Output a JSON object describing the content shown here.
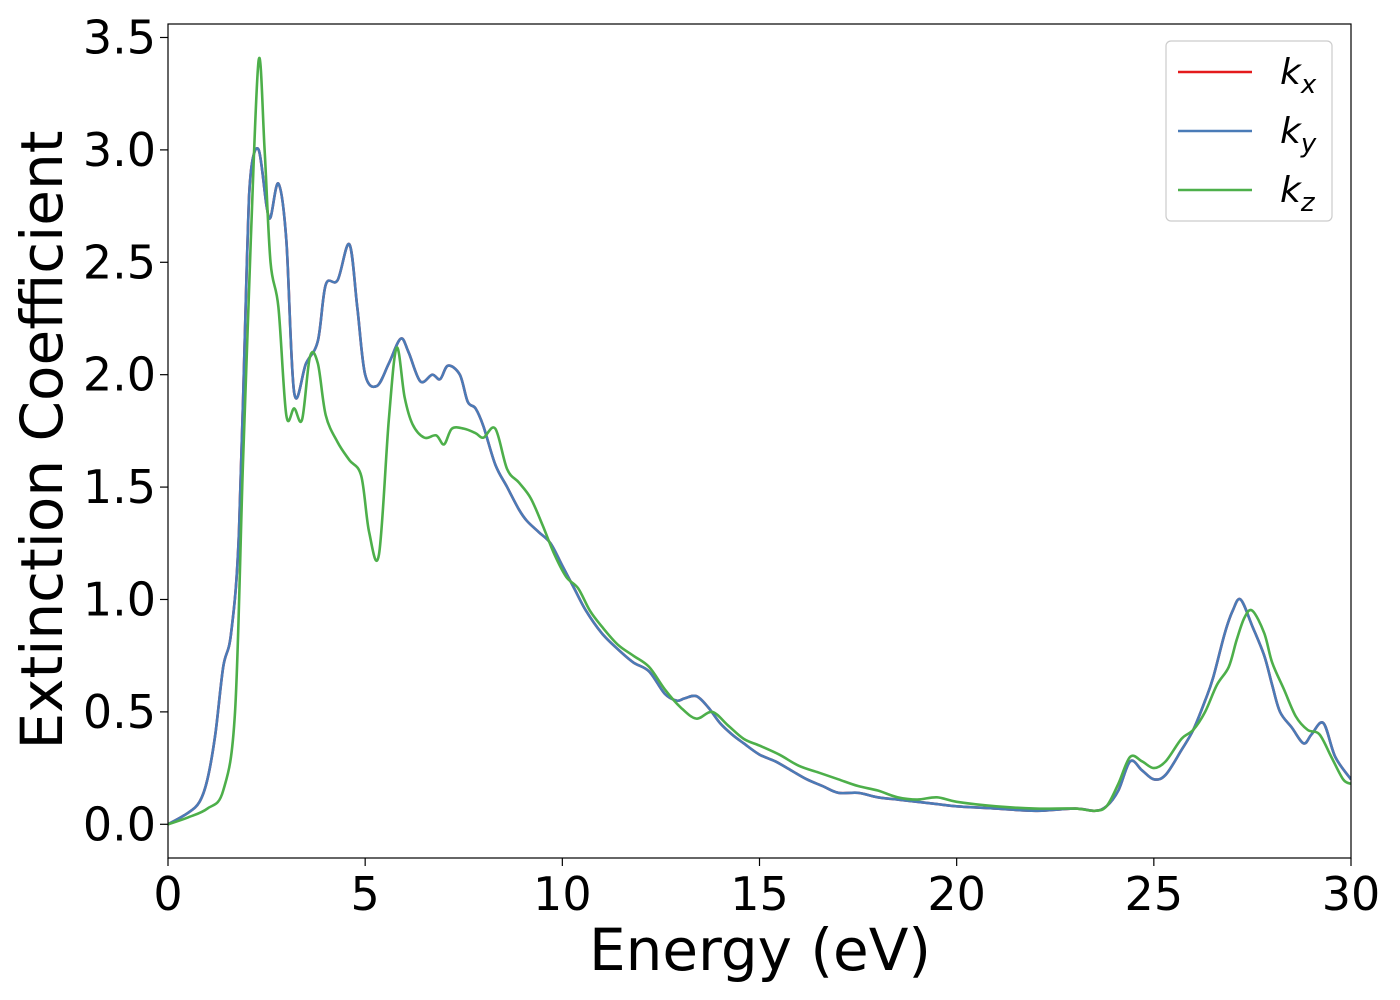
{
  "chart_data": {
    "type": "line",
    "xlabel": "Energy (eV)",
    "ylabel": "Extinction Coefficient",
    "xlim": [
      0,
      30
    ],
    "ylim": [
      -0.15,
      3.56
    ],
    "xticks": [
      0,
      5,
      10,
      15,
      20,
      25,
      30
    ],
    "xtick_labels": [
      "0",
      "5",
      "10",
      "15",
      "20",
      "25",
      "30"
    ],
    "yticks": [
      0.0,
      0.5,
      1.0,
      1.5,
      2.0,
      2.5,
      3.0,
      3.5
    ],
    "ytick_labels": [
      "0.0",
      "0.5",
      "1.0",
      "1.5",
      "2.0",
      "2.5",
      "3.0",
      "3.5"
    ],
    "grid": false,
    "legend_position": "top-right",
    "series": [
      {
        "name": "k_x",
        "label_main": "k",
        "label_sub": "x",
        "color": "#e41a1c",
        "x": [
          0,
          0.5,
          0.8,
          1.0,
          1.2,
          1.4,
          1.6,
          1.8,
          2.0,
          2.1,
          2.3,
          2.5,
          2.6,
          2.8,
          3.0,
          3.2,
          3.5,
          3.8,
          4.0,
          4.3,
          4.6,
          4.8,
          5.0,
          5.3,
          5.6,
          5.9,
          6.1,
          6.4,
          6.7,
          6.9,
          7.1,
          7.4,
          7.6,
          7.8,
          8.0,
          8.3,
          8.6,
          8.9,
          9.1,
          9.4,
          9.7,
          10.0,
          10.3,
          10.6,
          11.0,
          11.4,
          11.8,
          12.2,
          12.6,
          12.9,
          13.1,
          13.4,
          13.7,
          14.0,
          14.3,
          14.6,
          15.0,
          15.4,
          15.8,
          16.2,
          16.6,
          17.0,
          17.5,
          18.0,
          18.5,
          19.0,
          19.5,
          20.0,
          21.0,
          22.0,
          23.0,
          23.5,
          23.8,
          24.1,
          24.4,
          24.7,
          25.0,
          25.3,
          25.7,
          26.0,
          26.3,
          26.5,
          26.8,
          27.0,
          27.2,
          27.5,
          27.8,
          28.0,
          28.2,
          28.5,
          28.8,
          29.0,
          29.3,
          29.6,
          30.0
        ],
        "values": [
          0.0,
          0.05,
          0.1,
          0.2,
          0.4,
          0.7,
          0.85,
          1.3,
          2.5,
          2.9,
          3.0,
          2.75,
          2.7,
          2.85,
          2.6,
          1.92,
          2.05,
          2.15,
          2.4,
          2.42,
          2.58,
          2.3,
          2.0,
          1.95,
          2.05,
          2.16,
          2.1,
          1.97,
          2.0,
          1.98,
          2.04,
          2.0,
          1.88,
          1.85,
          1.77,
          1.6,
          1.5,
          1.4,
          1.35,
          1.3,
          1.25,
          1.15,
          1.05,
          0.95,
          0.85,
          0.78,
          0.72,
          0.68,
          0.58,
          0.55,
          0.56,
          0.57,
          0.52,
          0.45,
          0.4,
          0.36,
          0.31,
          0.28,
          0.24,
          0.2,
          0.17,
          0.14,
          0.14,
          0.12,
          0.11,
          0.1,
          0.09,
          0.08,
          0.07,
          0.06,
          0.07,
          0.06,
          0.08,
          0.15,
          0.28,
          0.24,
          0.2,
          0.22,
          0.33,
          0.42,
          0.55,
          0.65,
          0.85,
          0.95,
          1.0,
          0.88,
          0.75,
          0.62,
          0.5,
          0.43,
          0.36,
          0.4,
          0.45,
          0.3,
          0.2
        ]
      },
      {
        "name": "k_y",
        "label_main": "k",
        "label_sub": "y",
        "color": "#4a7bb7",
        "x": [
          0,
          0.5,
          0.8,
          1.0,
          1.2,
          1.4,
          1.6,
          1.8,
          2.0,
          2.1,
          2.3,
          2.5,
          2.6,
          2.8,
          3.0,
          3.2,
          3.5,
          3.8,
          4.0,
          4.3,
          4.6,
          4.8,
          5.0,
          5.3,
          5.6,
          5.9,
          6.1,
          6.4,
          6.7,
          6.9,
          7.1,
          7.4,
          7.6,
          7.8,
          8.0,
          8.3,
          8.6,
          8.9,
          9.1,
          9.4,
          9.7,
          10.0,
          10.3,
          10.6,
          11.0,
          11.4,
          11.8,
          12.2,
          12.6,
          12.9,
          13.1,
          13.4,
          13.7,
          14.0,
          14.3,
          14.6,
          15.0,
          15.4,
          15.8,
          16.2,
          16.6,
          17.0,
          17.5,
          18.0,
          18.5,
          19.0,
          19.5,
          20.0,
          21.0,
          22.0,
          23.0,
          23.5,
          23.8,
          24.1,
          24.4,
          24.7,
          25.0,
          25.3,
          25.7,
          26.0,
          26.3,
          26.5,
          26.8,
          27.0,
          27.2,
          27.5,
          27.8,
          28.0,
          28.2,
          28.5,
          28.8,
          29.0,
          29.3,
          29.6,
          30.0
        ],
        "values": [
          0.0,
          0.05,
          0.1,
          0.2,
          0.4,
          0.7,
          0.85,
          1.3,
          2.5,
          2.9,
          3.0,
          2.75,
          2.7,
          2.85,
          2.6,
          1.92,
          2.05,
          2.15,
          2.4,
          2.42,
          2.58,
          2.3,
          2.0,
          1.95,
          2.05,
          2.16,
          2.1,
          1.97,
          2.0,
          1.98,
          2.04,
          2.0,
          1.88,
          1.85,
          1.77,
          1.6,
          1.5,
          1.4,
          1.35,
          1.3,
          1.25,
          1.15,
          1.05,
          0.95,
          0.85,
          0.78,
          0.72,
          0.68,
          0.58,
          0.55,
          0.56,
          0.57,
          0.52,
          0.45,
          0.4,
          0.36,
          0.31,
          0.28,
          0.24,
          0.2,
          0.17,
          0.14,
          0.14,
          0.12,
          0.11,
          0.1,
          0.09,
          0.08,
          0.07,
          0.06,
          0.07,
          0.06,
          0.08,
          0.15,
          0.28,
          0.24,
          0.2,
          0.22,
          0.33,
          0.42,
          0.55,
          0.65,
          0.85,
          0.95,
          1.0,
          0.88,
          0.75,
          0.62,
          0.5,
          0.43,
          0.36,
          0.4,
          0.45,
          0.3,
          0.2
        ]
      },
      {
        "name": "k_z",
        "label_main": "k",
        "label_sub": "z",
        "color": "#4daf4a",
        "x": [
          0,
          0.5,
          1.0,
          1.4,
          1.7,
          1.9,
          2.1,
          2.3,
          2.45,
          2.6,
          2.8,
          3.0,
          3.2,
          3.4,
          3.6,
          3.8,
          4.0,
          4.3,
          4.6,
          4.9,
          5.1,
          5.35,
          5.6,
          5.8,
          6.0,
          6.2,
          6.5,
          6.8,
          7.0,
          7.2,
          7.5,
          7.8,
          8.0,
          8.3,
          8.6,
          8.9,
          9.2,
          9.5,
          9.8,
          10.1,
          10.4,
          10.7,
          11.0,
          11.4,
          11.8,
          12.2,
          12.6,
          13.0,
          13.4,
          13.8,
          14.2,
          14.6,
          15.0,
          15.5,
          16.0,
          16.5,
          17.0,
          17.5,
          18.0,
          18.5,
          19.0,
          19.5,
          20.0,
          21.0,
          22.0,
          23.0,
          23.5,
          23.8,
          24.1,
          24.4,
          24.7,
          25.0,
          25.3,
          25.7,
          26.0,
          26.3,
          26.6,
          26.9,
          27.1,
          27.3,
          27.5,
          27.8,
          28.0,
          28.3,
          28.6,
          28.9,
          29.2,
          29.5,
          29.8,
          30.0
        ],
        "values": [
          0.0,
          0.03,
          0.07,
          0.15,
          0.5,
          1.6,
          2.6,
          3.4,
          3.0,
          2.5,
          2.3,
          1.82,
          1.85,
          1.8,
          2.08,
          2.05,
          1.82,
          1.7,
          1.62,
          1.55,
          1.3,
          1.2,
          1.8,
          2.12,
          1.9,
          1.78,
          1.72,
          1.73,
          1.69,
          1.76,
          1.76,
          1.74,
          1.72,
          1.76,
          1.58,
          1.52,
          1.45,
          1.33,
          1.2,
          1.1,
          1.05,
          0.95,
          0.88,
          0.8,
          0.75,
          0.7,
          0.6,
          0.52,
          0.47,
          0.5,
          0.44,
          0.38,
          0.35,
          0.31,
          0.26,
          0.23,
          0.2,
          0.17,
          0.15,
          0.12,
          0.11,
          0.12,
          0.1,
          0.08,
          0.07,
          0.07,
          0.06,
          0.08,
          0.18,
          0.3,
          0.28,
          0.25,
          0.28,
          0.38,
          0.42,
          0.5,
          0.62,
          0.7,
          0.82,
          0.92,
          0.95,
          0.85,
          0.72,
          0.6,
          0.48,
          0.42,
          0.4,
          0.3,
          0.2,
          0.18
        ]
      }
    ]
  }
}
